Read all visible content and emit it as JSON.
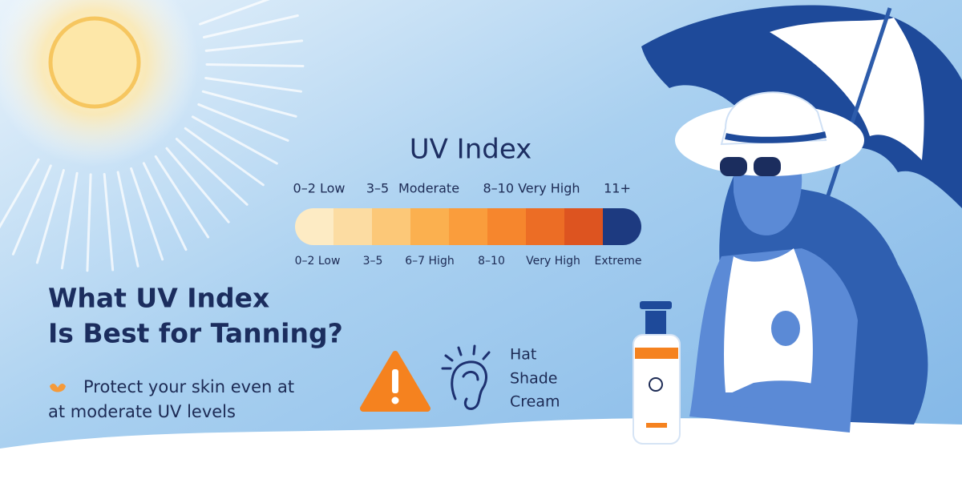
{
  "title": "UV Index",
  "top_labels": [
    "0–2 Low",
    "3–5",
    "Moderate",
    "8–10 Very High",
    "11+"
  ],
  "scale_colors": [
    "#fdebc4",
    "#fcdca2",
    "#fcc878",
    "#fbb04f",
    "#fa9d3c",
    "#f6862d",
    "#ec6d25",
    "#dd5420",
    "#1d3a80"
  ],
  "bottom_labels": [
    "0–2 Low",
    "3–5",
    "6–7 High",
    "8–10",
    "Very High",
    "Extreme"
  ],
  "headline": [
    "What UV Index",
    "Is Best for Tanning?"
  ],
  "tip": [
    "Protect your skin even at",
    "at moderate UV levels"
  ],
  "checklist": [
    "Hat",
    "Shade",
    "Cream"
  ]
}
